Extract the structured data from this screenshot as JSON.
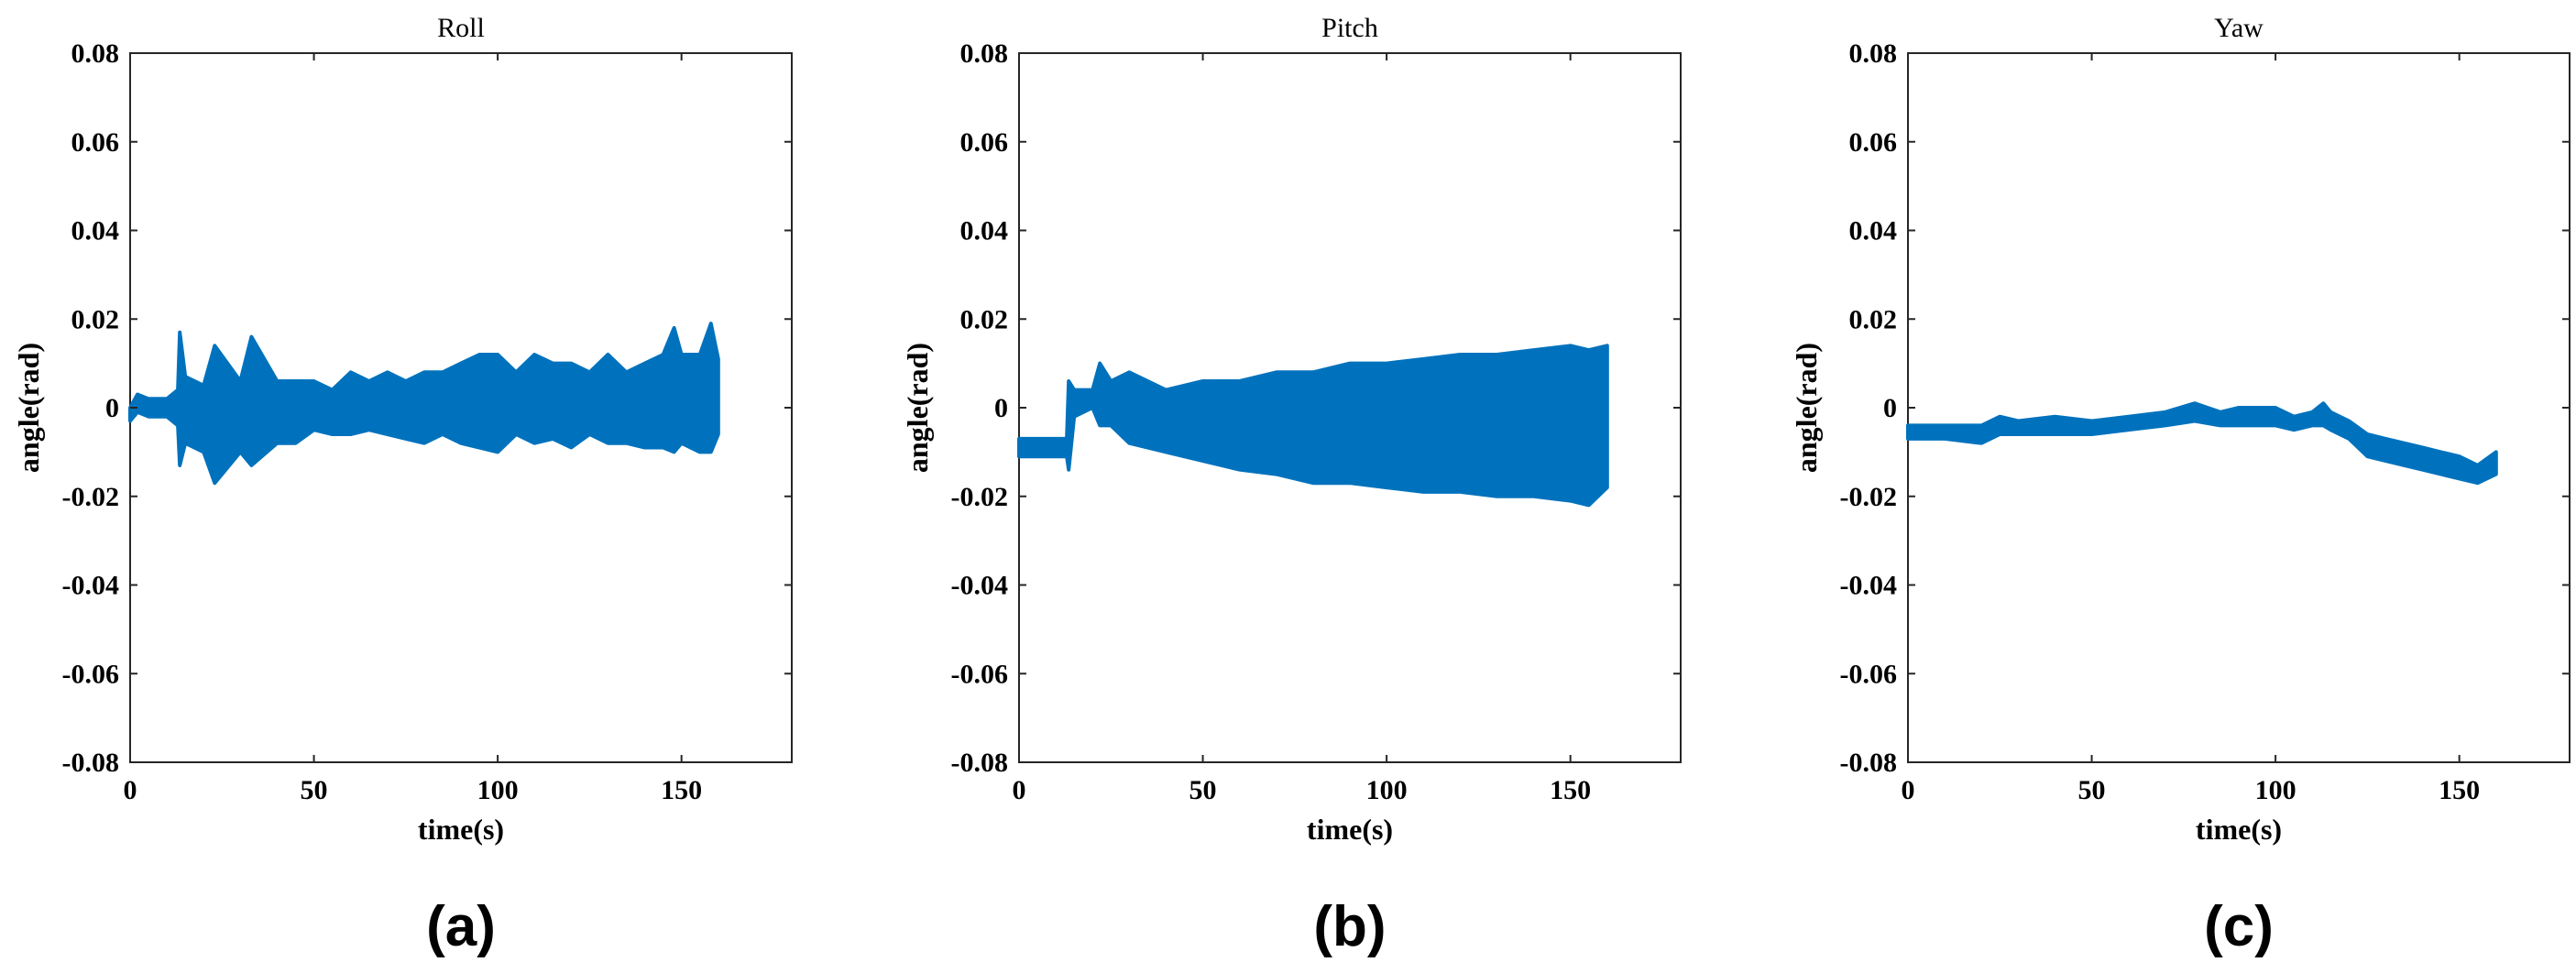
{
  "colors": {
    "series": "#0072BD",
    "axis": "#262626",
    "background": "#ffffff"
  },
  "chart_data": [
    {
      "type": "line",
      "title": "Roll",
      "panel_label": "(a)",
      "xlabel": "time(s)",
      "ylabel": "angle(rad)",
      "xlim": [
        0,
        180
      ],
      "ylim": [
        -0.08,
        0.08
      ],
      "xticks": [
        0,
        50,
        100,
        150
      ],
      "xtick_labels": [
        "0",
        "50",
        "100",
        "150"
      ],
      "yticks": [
        -0.08,
        -0.06,
        -0.04,
        -0.02,
        0,
        0.02,
        0.04,
        0.06,
        0.08
      ],
      "ytick_labels": [
        "-0.08",
        "-0.06",
        "-0.04",
        "-0.02",
        "0",
        "0.02",
        "0.04",
        "0.06",
        "0.08"
      ],
      "grid": false,
      "series": [
        {
          "envelope": {
            "x": [
              0,
              2,
              5,
              10,
              13,
              13.5,
              15,
              20,
              23,
              30,
              33,
              40,
              45,
              50,
              55,
              60,
              65,
              70,
              75,
              80,
              85,
              90,
              95,
              100,
              105,
              110,
              115,
              120,
              125,
              130,
              135,
              140,
              145,
              148,
              150,
              155,
              158,
              160
            ],
            "upper": [
              0.0,
              0.003,
              0.002,
              0.002,
              0.004,
              0.017,
              0.007,
              0.005,
              0.014,
              0.006,
              0.016,
              0.006,
              0.006,
              0.006,
              0.004,
              0.008,
              0.006,
              0.008,
              0.006,
              0.008,
              0.008,
              0.01,
              0.012,
              0.012,
              0.008,
              0.012,
              0.01,
              0.01,
              0.008,
              0.012,
              0.008,
              0.01,
              0.012,
              0.018,
              0.012,
              0.012,
              0.019,
              0.011
            ],
            "lower": [
              -0.003,
              -0.001,
              -0.002,
              -0.002,
              -0.004,
              -0.013,
              -0.008,
              -0.01,
              -0.017,
              -0.01,
              -0.013,
              -0.008,
              -0.008,
              -0.005,
              -0.006,
              -0.006,
              -0.005,
              -0.006,
              -0.007,
              -0.008,
              -0.006,
              -0.008,
              -0.009,
              -0.01,
              -0.006,
              -0.008,
              -0.007,
              -0.009,
              -0.006,
              -0.008,
              -0.008,
              -0.009,
              -0.009,
              -0.01,
              -0.008,
              -0.01,
              -0.01,
              -0.006
            ]
          }
        }
      ]
    },
    {
      "type": "line",
      "title": "Pitch",
      "panel_label": "(b)",
      "xlabel": "time(s)",
      "ylabel": "angle(rad)",
      "xlim": [
        0,
        180
      ],
      "ylim": [
        -0.08,
        0.08
      ],
      "xticks": [
        0,
        50,
        100,
        150
      ],
      "xtick_labels": [
        "0",
        "50",
        "100",
        "150"
      ],
      "yticks": [
        -0.08,
        -0.06,
        -0.04,
        -0.02,
        0,
        0.02,
        0.04,
        0.06,
        0.08
      ],
      "ytick_labels": [
        "-0.08",
        "-0.06",
        "-0.04",
        "-0.02",
        "0",
        "0.02",
        "0.04",
        "0.06",
        "0.08"
      ],
      "grid": false,
      "series": [
        {
          "envelope": {
            "x": [
              0,
              5,
              10,
              13,
              13.5,
              15,
              20,
              22,
              25,
              30,
              40,
              50,
              60,
              70,
              80,
              90,
              100,
              110,
              120,
              130,
              140,
              150,
              155,
              160
            ],
            "upper": [
              -0.007,
              -0.007,
              -0.007,
              -0.007,
              0.006,
              0.004,
              0.004,
              0.01,
              0.006,
              0.008,
              0.004,
              0.006,
              0.006,
              0.008,
              0.008,
              0.01,
              0.01,
              0.011,
              0.012,
              0.012,
              0.013,
              0.014,
              0.013,
              0.014
            ],
            "lower": [
              -0.011,
              -0.011,
              -0.011,
              -0.011,
              -0.014,
              -0.002,
              0.0,
              -0.004,
              -0.004,
              -0.008,
              -0.01,
              -0.012,
              -0.014,
              -0.015,
              -0.017,
              -0.017,
              -0.018,
              -0.019,
              -0.019,
              -0.02,
              -0.02,
              -0.021,
              -0.022,
              -0.018
            ]
          }
        }
      ]
    },
    {
      "type": "line",
      "title": "Yaw",
      "panel_label": "(c)",
      "xlabel": "time(s)",
      "ylabel": "angle(rad)",
      "xlim": [
        0,
        180
      ],
      "ylim": [
        -0.08,
        0.08
      ],
      "xticks": [
        0,
        50,
        100,
        150
      ],
      "xtick_labels": [
        "0",
        "50",
        "100",
        "150"
      ],
      "yticks": [
        -0.08,
        -0.06,
        -0.04,
        -0.02,
        0,
        0.02,
        0.04,
        0.06,
        0.08
      ],
      "ytick_labels": [
        "-0.08",
        "-0.06",
        "-0.04",
        "-0.02",
        "0",
        "0.02",
        "0.04",
        "0.06",
        "0.08"
      ],
      "grid": false,
      "series": [
        {
          "envelope": {
            "x": [
              0,
              10,
              20,
              25,
              30,
              40,
              50,
              60,
              70,
              78,
              85,
              90,
              100,
              105,
              110,
              113,
              115,
              120,
              125,
              130,
              135,
              140,
              145,
              150,
              155,
              160
            ],
            "upper": [
              -0.004,
              -0.004,
              -0.004,
              -0.002,
              -0.003,
              -0.002,
              -0.003,
              -0.002,
              -0.001,
              0.001,
              -0.001,
              0.0,
              0.0,
              -0.002,
              -0.001,
              0.001,
              -0.001,
              -0.003,
              -0.006,
              -0.007,
              -0.008,
              -0.009,
              -0.01,
              -0.011,
              -0.013,
              -0.01
            ],
            "lower": [
              -0.007,
              -0.007,
              -0.008,
              -0.006,
              -0.006,
              -0.006,
              -0.006,
              -0.005,
              -0.004,
              -0.003,
              -0.004,
              -0.004,
              -0.004,
              -0.005,
              -0.004,
              -0.004,
              -0.005,
              -0.007,
              -0.011,
              -0.012,
              -0.013,
              -0.014,
              -0.015,
              -0.016,
              -0.017,
              -0.015
            ]
          }
        }
      ]
    }
  ]
}
